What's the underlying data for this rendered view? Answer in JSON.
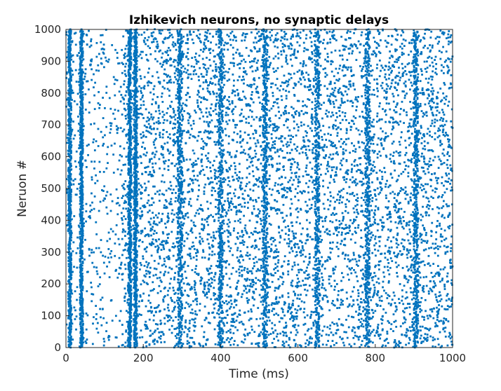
{
  "chart_data": {
    "type": "scatter",
    "title": "Izhikevich neurons, no synaptic delays",
    "xlabel": "Time (ms)",
    "ylabel": "Neruon #",
    "xlim": [
      0,
      1000
    ],
    "ylim": [
      0,
      1000
    ],
    "xticks": [
      0,
      200,
      400,
      600,
      800,
      1000
    ],
    "yticks": [
      0,
      100,
      200,
      300,
      400,
      500,
      600,
      700,
      800,
      900,
      1000
    ],
    "x_tick_labels": [
      "0",
      "200",
      "400",
      "600",
      "800",
      "1000"
    ],
    "y_tick_labels": [
      "0",
      "100",
      "200",
      "300",
      "400",
      "500",
      "600",
      "700",
      "800",
      "900",
      "1000"
    ],
    "grid": false,
    "box": true,
    "marker_color": "#0072BD",
    "marker": "small-square",
    "population_bursts_ms": [
      10,
      40,
      165,
      180,
      295,
      400,
      515,
      650,
      780,
      905
    ],
    "series": [
      {
        "values_description": "spike raster",
        "points": [
          [
            10,
            980
          ],
          [
            12,
            940
          ],
          [
            14,
            905
          ],
          [
            16,
            870
          ],
          [
            8,
            840
          ],
          [
            11,
            800
          ],
          [
            13,
            760
          ],
          [
            9,
            720
          ],
          [
            15,
            680
          ],
          [
            12,
            640
          ],
          [
            10,
            600
          ],
          [
            14,
            560
          ],
          [
            11,
            520
          ],
          [
            13,
            480
          ],
          [
            9,
            440
          ],
          [
            12,
            400
          ],
          [
            15,
            360
          ],
          [
            10,
            320
          ],
          [
            13,
            280
          ],
          [
            11,
            240
          ],
          [
            14,
            200
          ],
          [
            12,
            160
          ],
          [
            10,
            120
          ],
          [
            13,
            80
          ],
          [
            11,
            40
          ],
          [
            12,
            10
          ],
          [
            38,
            995
          ],
          [
            40,
            960
          ],
          [
            42,
            925
          ],
          [
            39,
            890
          ],
          [
            41,
            855
          ],
          [
            43,
            820
          ],
          [
            38,
            785
          ],
          [
            40,
            750
          ],
          [
            42,
            715
          ],
          [
            39,
            680
          ],
          [
            41,
            645
          ],
          [
            43,
            610
          ],
          [
            38,
            575
          ],
          [
            40,
            540
          ],
          [
            42,
            505
          ],
          [
            39,
            470
          ],
          [
            41,
            435
          ],
          [
            43,
            400
          ],
          [
            38,
            365
          ],
          [
            40,
            330
          ],
          [
            42,
            295
          ],
          [
            39,
            260
          ],
          [
            41,
            225
          ],
          [
            43,
            190
          ],
          [
            38,
            155
          ],
          [
            40,
            120
          ],
          [
            42,
            85
          ],
          [
            39,
            50
          ],
          [
            41,
            15
          ],
          [
            160,
            990
          ],
          [
            163,
            950
          ],
          [
            166,
            910
          ],
          [
            162,
            870
          ],
          [
            165,
            830
          ],
          [
            168,
            790
          ],
          [
            161,
            750
          ],
          [
            164,
            710
          ],
          [
            167,
            670
          ],
          [
            163,
            630
          ],
          [
            166,
            590
          ],
          [
            162,
            550
          ],
          [
            165,
            510
          ],
          [
            168,
            470
          ],
          [
            161,
            430
          ],
          [
            164,
            390
          ],
          [
            167,
            350
          ],
          [
            163,
            310
          ],
          [
            166,
            270
          ],
          [
            162,
            230
          ],
          [
            165,
            190
          ],
          [
            168,
            150
          ],
          [
            161,
            110
          ],
          [
            164,
            70
          ],
          [
            167,
            30
          ],
          [
            178,
            970
          ],
          [
            181,
            925
          ],
          [
            179,
            880
          ],
          [
            182,
            835
          ],
          [
            180,
            790
          ],
          [
            178,
            745
          ],
          [
            181,
            700
          ],
          [
            179,
            655
          ],
          [
            182,
            610
          ],
          [
            180,
            565
          ],
          [
            178,
            520
          ],
          [
            181,
            475
          ],
          [
            179,
            430
          ],
          [
            182,
            385
          ],
          [
            180,
            340
          ],
          [
            178,
            295
          ],
          [
            181,
            250
          ],
          [
            179,
            205
          ],
          [
            182,
            160
          ],
          [
            180,
            115
          ],
          [
            178,
            70
          ],
          [
            181,
            25
          ],
          [
            290,
            985
          ],
          [
            293,
            945
          ],
          [
            296,
            905
          ],
          [
            292,
            865
          ],
          [
            295,
            825
          ],
          [
            298,
            785
          ],
          [
            291,
            745
          ],
          [
            294,
            705
          ],
          [
            297,
            665
          ],
          [
            293,
            625
          ],
          [
            296,
            585
          ],
          [
            292,
            545
          ],
          [
            295,
            505
          ],
          [
            298,
            465
          ],
          [
            291,
            425
          ],
          [
            294,
            385
          ],
          [
            297,
            345
          ],
          [
            293,
            305
          ],
          [
            296,
            265
          ],
          [
            292,
            225
          ],
          [
            295,
            185
          ],
          [
            298,
            145
          ],
          [
            291,
            105
          ],
          [
            294,
            65
          ],
          [
            297,
            25
          ],
          [
            398,
            960
          ],
          [
            402,
            910
          ],
          [
            399,
            860
          ],
          [
            403,
            810
          ],
          [
            400,
            760
          ],
          [
            397,
            710
          ],
          [
            401,
            660
          ],
          [
            404,
            610
          ],
          [
            399,
            560
          ],
          [
            402,
            510
          ],
          [
            398,
            460
          ],
          [
            401,
            410
          ],
          [
            403,
            360
          ],
          [
            400,
            310
          ],
          [
            397,
            260
          ],
          [
            402,
            210
          ],
          [
            399,
            160
          ],
          [
            401,
            110
          ],
          [
            403,
            60
          ],
          [
            400,
            15
          ],
          [
            512,
            975
          ],
          [
            515,
            930
          ],
          [
            518,
            885
          ],
          [
            514,
            840
          ],
          [
            517,
            795
          ],
          [
            513,
            750
          ],
          [
            516,
            705
          ],
          [
            519,
            660
          ],
          [
            512,
            615
          ],
          [
            515,
            570
          ],
          [
            518,
            525
          ],
          [
            514,
            480
          ],
          [
            517,
            435
          ],
          [
            513,
            390
          ],
          [
            516,
            345
          ],
          [
            519,
            300
          ],
          [
            512,
            255
          ],
          [
            515,
            210
          ],
          [
            518,
            165
          ],
          [
            514,
            120
          ],
          [
            517,
            75
          ],
          [
            513,
            30
          ],
          [
            647,
            980
          ],
          [
            650,
            935
          ],
          [
            653,
            890
          ],
          [
            649,
            845
          ],
          [
            652,
            800
          ],
          [
            648,
            755
          ],
          [
            651,
            710
          ],
          [
            654,
            665
          ],
          [
            647,
            620
          ],
          [
            650,
            575
          ],
          [
            653,
            530
          ],
          [
            649,
            485
          ],
          [
            652,
            440
          ],
          [
            648,
            395
          ],
          [
            651,
            350
          ],
          [
            654,
            305
          ],
          [
            647,
            260
          ],
          [
            650,
            215
          ],
          [
            653,
            170
          ],
          [
            649,
            125
          ],
          [
            652,
            80
          ],
          [
            648,
            35
          ],
          [
            777,
            970
          ],
          [
            780,
            925
          ],
          [
            783,
            880
          ],
          [
            779,
            835
          ],
          [
            782,
            790
          ],
          [
            778,
            745
          ],
          [
            781,
            700
          ],
          [
            784,
            655
          ],
          [
            777,
            610
          ],
          [
            780,
            565
          ],
          [
            783,
            520
          ],
          [
            779,
            475
          ],
          [
            782,
            430
          ],
          [
            778,
            385
          ],
          [
            781,
            340
          ],
          [
            784,
            295
          ],
          [
            777,
            250
          ],
          [
            780,
            205
          ],
          [
            783,
            160
          ],
          [
            779,
            115
          ],
          [
            782,
            70
          ],
          [
            778,
            25
          ],
          [
            902,
            990
          ],
          [
            905,
            945
          ],
          [
            908,
            900
          ],
          [
            904,
            855
          ],
          [
            907,
            810
          ],
          [
            903,
            765
          ],
          [
            906,
            720
          ],
          [
            909,
            675
          ],
          [
            902,
            630
          ],
          [
            905,
            585
          ],
          [
            908,
            540
          ],
          [
            904,
            495
          ],
          [
            907,
            450
          ],
          [
            903,
            405
          ],
          [
            906,
            360
          ],
          [
            909,
            315
          ],
          [
            902,
            270
          ],
          [
            905,
            225
          ],
          [
            908,
            180
          ],
          [
            904,
            135
          ],
          [
            907,
            90
          ],
          [
            903,
            45
          ],
          [
            906,
            5
          ],
          [
            60,
            310
          ],
          [
            75,
            620
          ],
          [
            90,
            150
          ],
          [
            105,
            820
          ],
          [
            120,
            460
          ],
          [
            135,
            690
          ],
          [
            145,
            230
          ],
          [
            195,
            580
          ],
          [
            210,
            905
          ],
          [
            225,
            340
          ],
          [
            240,
            760
          ],
          [
            255,
            120
          ],
          [
            270,
            520
          ],
          [
            285,
            870
          ],
          [
            310,
            420
          ],
          [
            325,
            190
          ],
          [
            340,
            650
          ],
          [
            355,
            930
          ],
          [
            370,
            280
          ],
          [
            385,
            540
          ],
          [
            415,
            710
          ],
          [
            430,
            90
          ],
          [
            445,
            360
          ],
          [
            460,
            830
          ],
          [
            475,
            240
          ],
          [
            490,
            600
          ],
          [
            530,
            440
          ],
          [
            545,
            780
          ],
          [
            560,
            160
          ],
          [
            575,
            520
          ],
          [
            590,
            920
          ],
          [
            605,
            300
          ],
          [
            620,
            680
          ],
          [
            635,
            60
          ],
          [
            665,
            380
          ],
          [
            680,
            740
          ],
          [
            695,
            210
          ],
          [
            710,
            560
          ],
          [
            725,
            880
          ],
          [
            740,
            130
          ],
          [
            755,
            470
          ],
          [
            795,
            640
          ],
          [
            810,
            270
          ],
          [
            825,
            850
          ],
          [
            840,
            410
          ],
          [
            855,
            740
          ],
          [
            870,
            180
          ],
          [
            885,
            590
          ],
          [
            920,
            330
          ],
          [
            935,
            810
          ],
          [
            950,
            470
          ],
          [
            965,
            120
          ],
          [
            980,
            700
          ],
          [
            995,
            250
          ]
        ]
      }
    ]
  }
}
